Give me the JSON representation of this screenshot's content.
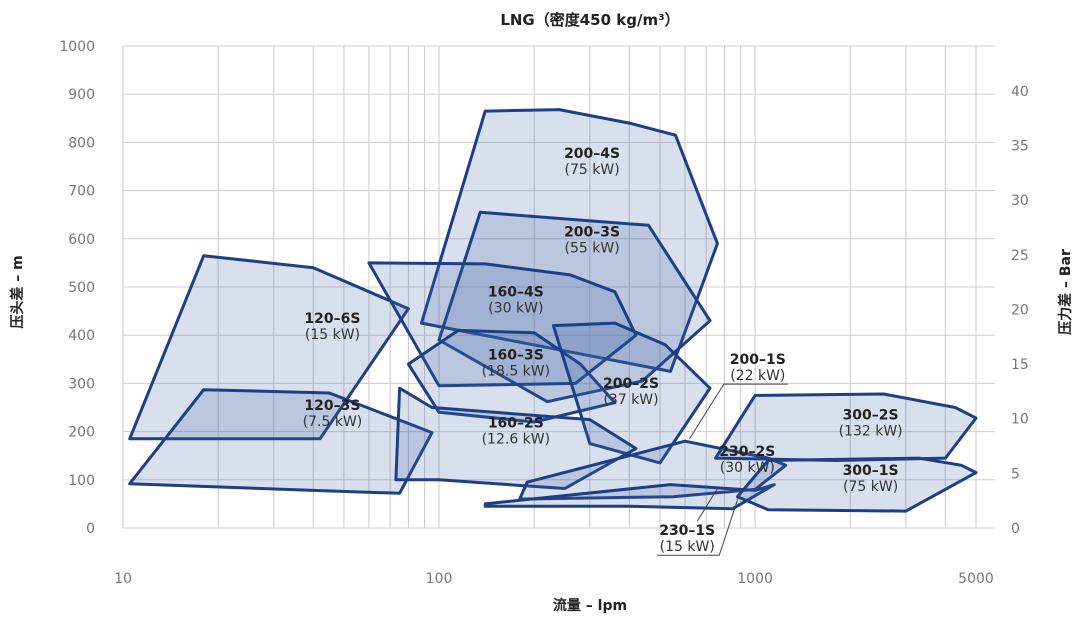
{
  "chart_data": {
    "type": "area",
    "title": "LNG（密度450 kg/m³）",
    "xlabel": "流量 – lpm",
    "ylabel": "压头差 – m",
    "y2label": "压力差 – Bar",
    "x_scale": "log",
    "xlim": [
      10,
      5000
    ],
    "ylim": [
      0,
      1000
    ],
    "y2lim": [
      0,
      44.1
    ],
    "x_ticks": [
      "10",
      "100",
      "1000",
      "5000"
    ],
    "y_ticks": [
      "0",
      "100",
      "200",
      "300",
      "400",
      "500",
      "600",
      "700",
      "800",
      "900",
      "1000"
    ],
    "y2_ticks": [
      "0",
      "5",
      "10",
      "15",
      "20",
      "25",
      "30",
      "35",
      "40"
    ],
    "grid": true,
    "series": [
      {
        "name": "120-6S",
        "power": "(15 kW)",
        "label_at": [
          46,
          425
        ],
        "points": [
          [
            10.5,
            185
          ],
          [
            18,
            565
          ],
          [
            40,
            540
          ],
          [
            80,
            455
          ],
          [
            42,
            185
          ]
        ]
      },
      {
        "name": "120-3S",
        "power": "(7.5 kW)",
        "label_at": [
          46,
          245
        ],
        "points": [
          [
            10.5,
            92
          ],
          [
            18,
            287
          ],
          [
            45,
            280
          ],
          [
            95,
            198
          ],
          [
            75,
            72
          ],
          [
            40,
            78
          ]
        ]
      },
      {
        "name": "200-4S",
        "power": "(75 kW)",
        "label_at": [
          305,
          768
        ],
        "points": [
          [
            88,
            425
          ],
          [
            140,
            865
          ],
          [
            240,
            868
          ],
          [
            400,
            840
          ],
          [
            560,
            815
          ],
          [
            760,
            590
          ],
          [
            540,
            325
          ]
        ]
      },
      {
        "name": "200-3S",
        "power": "(55 kW)",
        "label_at": [
          305,
          605
        ],
        "points": [
          [
            100,
            390
          ],
          [
            135,
            655
          ],
          [
            460,
            628
          ],
          [
            720,
            430
          ],
          [
            440,
            305
          ],
          [
            220,
            262
          ]
        ]
      },
      {
        "name": "160-4S",
        "power": "(30 kW)",
        "label_at": [
          175,
          480
        ],
        "points": [
          [
            60,
            550
          ],
          [
            140,
            548
          ],
          [
            260,
            525
          ],
          [
            360,
            490
          ],
          [
            420,
            400
          ],
          [
            270,
            300
          ],
          [
            100,
            295
          ]
        ]
      },
      {
        "name": "160-3S",
        "power": "(18.5 kW)",
        "label_at": [
          175,
          350
        ],
        "points": [
          [
            80,
            340
          ],
          [
            115,
            410
          ],
          [
            200,
            405
          ],
          [
            280,
            340
          ],
          [
            360,
            260
          ],
          [
            200,
            220
          ],
          [
            100,
            240
          ]
        ]
      },
      {
        "name": "200-2S",
        "power": "(37 kW)",
        "label_at": [
          405,
          290
        ],
        "points": [
          [
            230,
            420
          ],
          [
            360,
            425
          ],
          [
            520,
            380
          ],
          [
            720,
            290
          ],
          [
            500,
            135
          ],
          [
            300,
            175
          ]
        ]
      },
      {
        "name": "160-2S",
        "power": "(12.6 kW)",
        "label_at": [
          175,
          208
        ],
        "points": [
          [
            75,
            290
          ],
          [
            95,
            250
          ],
          [
            300,
            225
          ],
          [
            420,
            165
          ],
          [
            250,
            82
          ],
          [
            100,
            100
          ],
          [
            73,
            100
          ]
        ]
      },
      {
        "name": "200-1S",
        "power": "(22 kW)",
        "label_at": [
          1020,
          340
        ],
        "points": []
      },
      {
        "name": "230-2S",
        "power": "(30 kW)",
        "label_at": [
          945,
          149
        ],
        "points": [
          [
            190,
            95
          ],
          [
            600,
            180
          ],
          [
            1100,
            145
          ],
          [
            1250,
            130
          ],
          [
            1000,
            80
          ],
          [
            550,
            65
          ],
          [
            180,
            60
          ]
        ]
      },
      {
        "name": "230-1S",
        "power": "(15 kW)",
        "label_at": [
          610,
          -15
        ],
        "points": [
          [
            140,
            50
          ],
          [
            540,
            90
          ],
          [
            1000,
            78
          ],
          [
            1150,
            90
          ],
          [
            850,
            40
          ],
          [
            400,
            45
          ],
          [
            140,
            45
          ]
        ]
      },
      {
        "name": "300-2S",
        "power": "(132 kW)",
        "label_at": [
          2320,
          225
        ],
        "points": [
          [
            750,
            145
          ],
          [
            1000,
            275
          ],
          [
            2550,
            278
          ],
          [
            4300,
            250
          ],
          [
            5000,
            228
          ],
          [
            4000,
            145
          ],
          [
            1800,
            140
          ]
        ]
      },
      {
        "name": "300-1S",
        "power": "(75 kW)",
        "label_at": [
          2320,
          110
        ],
        "points": [
          [
            880,
            65
          ],
          [
            1100,
            140
          ],
          [
            3300,
            145
          ],
          [
            4500,
            130
          ],
          [
            5000,
            115
          ],
          [
            3000,
            35
          ],
          [
            1100,
            38
          ]
        ]
      }
    ]
  }
}
